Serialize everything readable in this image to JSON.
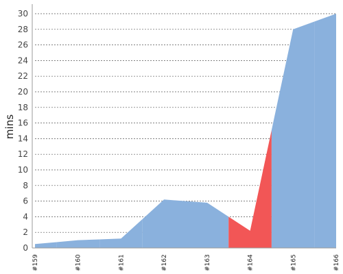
{
  "chart_data": {
    "type": "area",
    "ylabel": "mins",
    "xlabel": "",
    "title": "",
    "ylim": [
      0,
      30
    ],
    "yticks": [
      0,
      2,
      4,
      6,
      8,
      10,
      12,
      14,
      16,
      18,
      20,
      22,
      24,
      26,
      28,
      30
    ],
    "grid": "horizontal dashed",
    "legend": "none",
    "categories": [
      "#159",
      "#160",
      "#161",
      "#162",
      "#163",
      "#164",
      "#165",
      "#166"
    ],
    "values": [
      0.5,
      1.0,
      1.2,
      6.2,
      5.8,
      2.2,
      28.0,
      30.0
    ],
    "status": [
      "passed",
      "passed",
      "passed",
      "passed",
      "passed",
      "failed",
      "passed",
      "passed"
    ],
    "colors": {
      "passed": "#8ab1dd",
      "failed": "#f25656",
      "axis": "#999999"
    }
  }
}
